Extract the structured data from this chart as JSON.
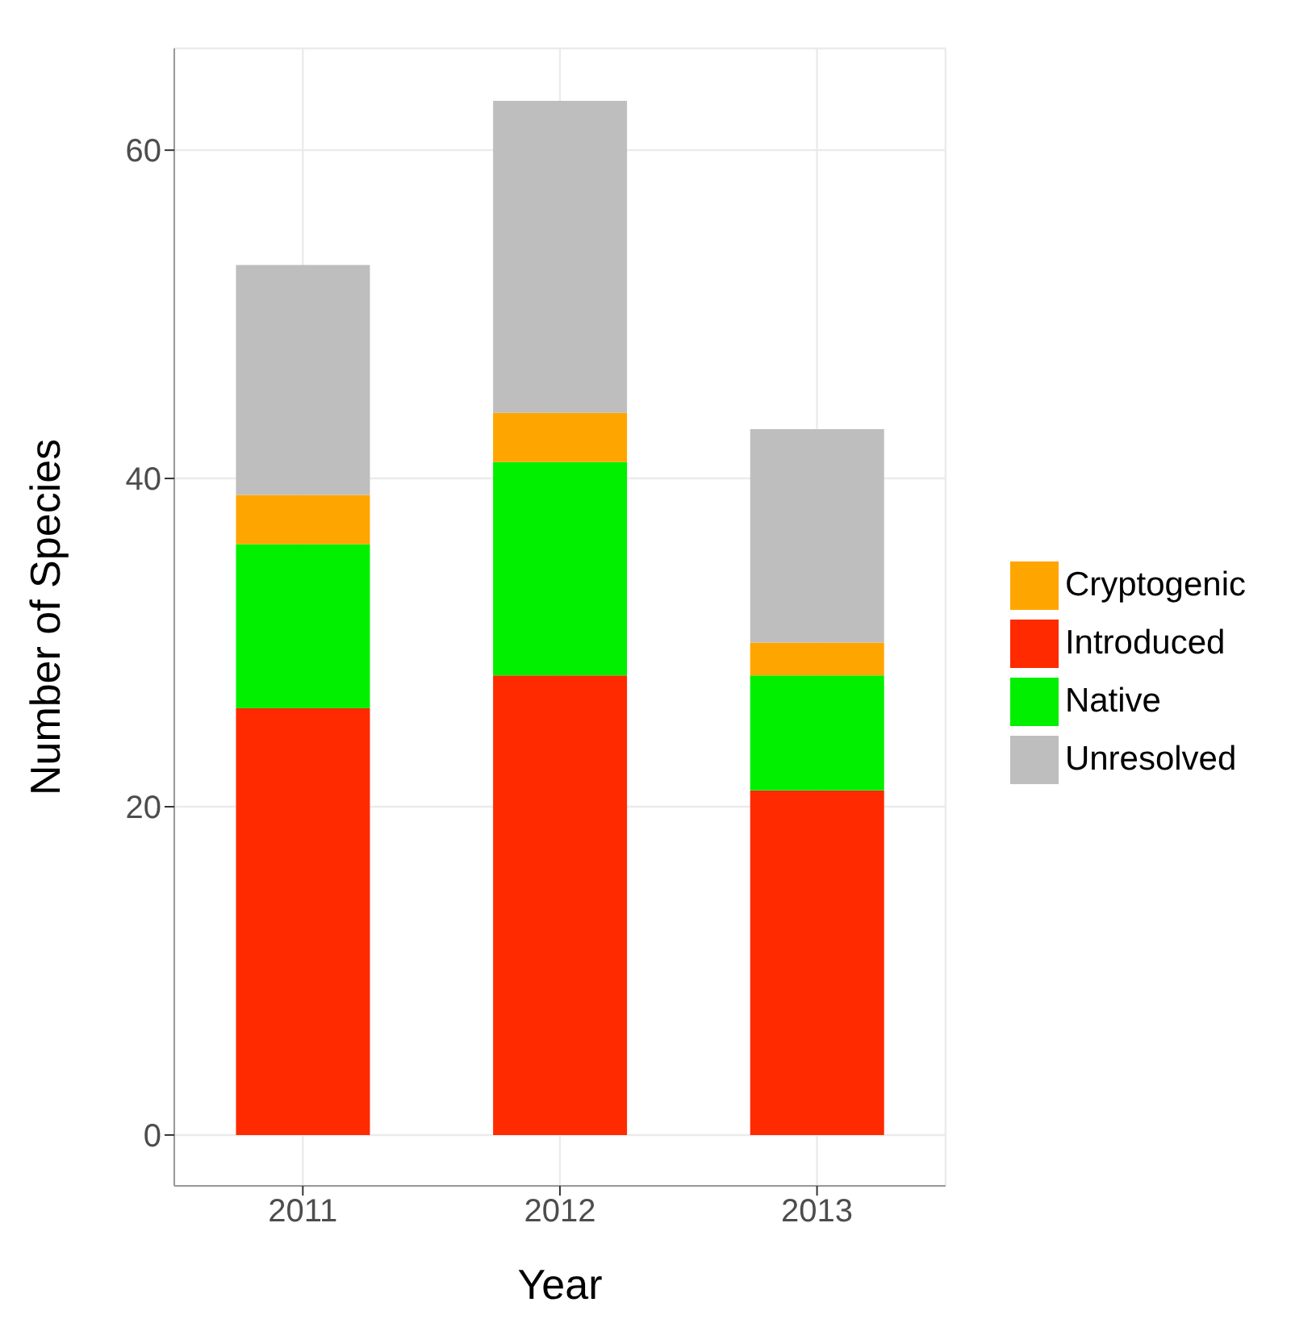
{
  "chart_data": {
    "type": "bar",
    "stacked": true,
    "xlabel": "Year",
    "ylabel": "Number of Species",
    "categories": [
      "2011",
      "2012",
      "2013"
    ],
    "series": [
      {
        "name": "Introduced",
        "color": "#ff2a00",
        "values": [
          26,
          28,
          21
        ]
      },
      {
        "name": "Native",
        "color": "#00f000",
        "values": [
          10,
          13,
          7
        ]
      },
      {
        "name": "Cryptogenic",
        "color": "#ffa500",
        "values": [
          3,
          3,
          2
        ]
      },
      {
        "name": "Unresolved",
        "color": "#bebebe",
        "values": [
          14,
          19,
          13
        ]
      }
    ],
    "ylim": [
      -3.1,
      66.2
    ],
    "yticks": [
      0,
      20,
      40,
      60
    ],
    "grid": true,
    "legend": "right"
  }
}
